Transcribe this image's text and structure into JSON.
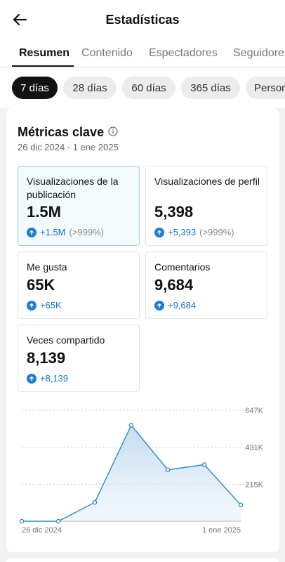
{
  "header": {
    "title": "Estadísticas"
  },
  "tabs": [
    {
      "label": "Resumen"
    },
    {
      "label": "Contenido"
    },
    {
      "label": "Espectadores"
    },
    {
      "label": "Seguidores"
    }
  ],
  "periods": [
    {
      "label": "7 días"
    },
    {
      "label": "28 días"
    },
    {
      "label": "60 días"
    },
    {
      "label": "365 días"
    },
    {
      "label": "Personalizado"
    }
  ],
  "metrics_card": {
    "title": "Métricas clave",
    "date_range": "26 dic 2024 - 1 ene 2025"
  },
  "metrics": [
    {
      "label": "Visualizaciones de la publicación",
      "value": "1.5M",
      "delta": "+1.5M",
      "pct": "(>999%)"
    },
    {
      "label": "Visualizaciones de perfil",
      "value": "5,398",
      "delta": "+5,393",
      "pct": "(>999%)"
    },
    {
      "label": "Me gusta",
      "value": "65K",
      "delta": "+65K",
      "pct": ""
    },
    {
      "label": "Comentarios",
      "value": "9,684",
      "delta": "+9,684",
      "pct": ""
    },
    {
      "label": "Veces compartido",
      "value": "8,139",
      "delta": "+8,139",
      "pct": ""
    }
  ],
  "chart_data": {
    "type": "area",
    "x_labels": [
      "26 dic 2024",
      "",
      "",
      "",
      "",
      "",
      "1 ene 2025"
    ],
    "values": [
      0,
      0,
      110000,
      560000,
      300000,
      330000,
      95000
    ],
    "ylim": [
      0,
      647000
    ],
    "yticks": [
      {
        "value": 647000,
        "label": "647K"
      },
      {
        "value": 431000,
        "label": "431K"
      },
      {
        "value": 215000,
        "label": "215K"
      }
    ],
    "color": "#2f86c8"
  }
}
